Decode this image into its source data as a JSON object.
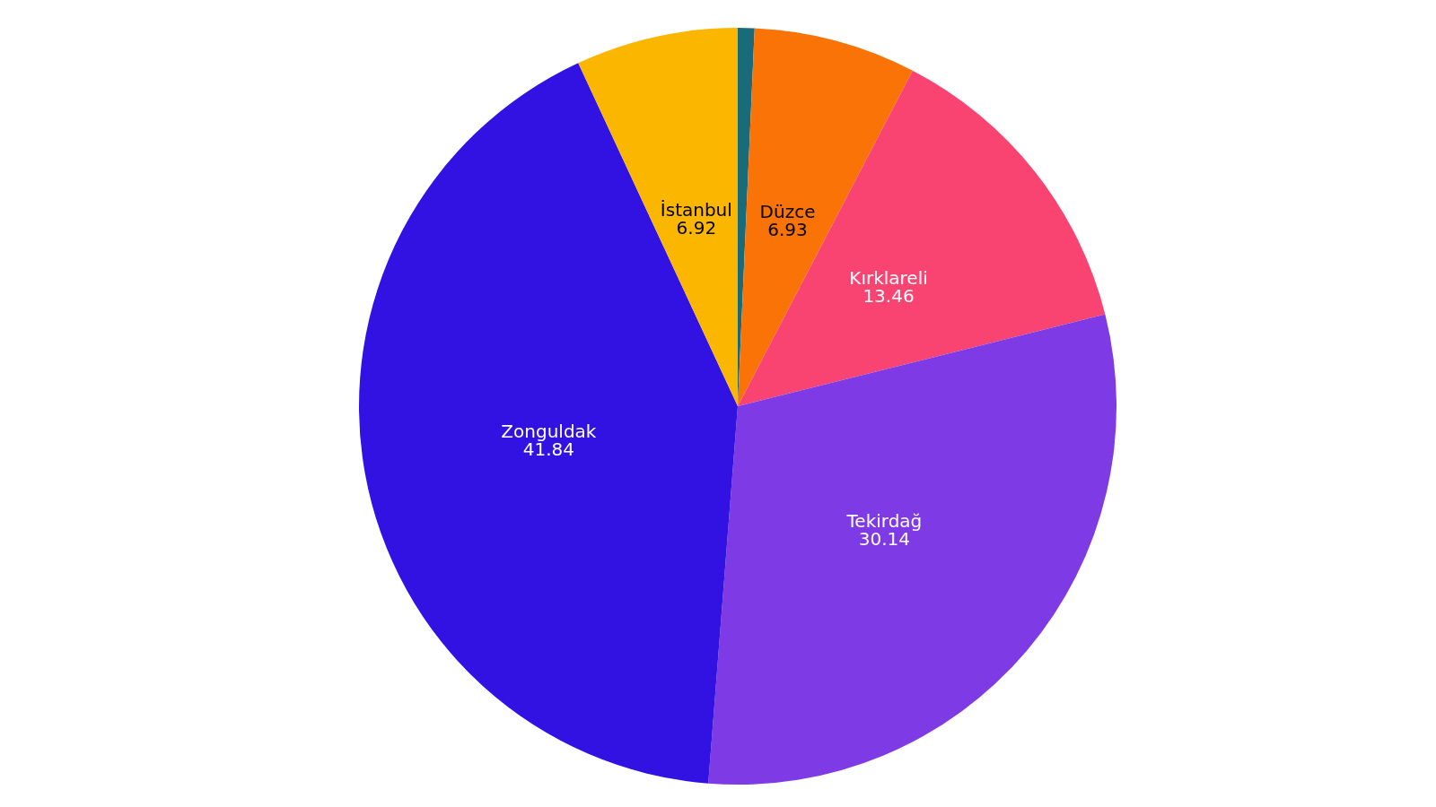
{
  "chart_data": {
    "type": "pie",
    "categories": [
      null,
      "Düzce",
      "Kırklareli",
      "Tekirdağ",
      "Zonguldak",
      "İstanbul"
    ],
    "values": [
      0.71,
      6.93,
      13.46,
      30.14,
      41.84,
      6.92
    ],
    "value_labels": [
      null,
      "6.93",
      "13.46",
      "30.14",
      "41.84",
      "6.92"
    ],
    "colors": [
      "#1a6b7a",
      "#f97306",
      "#f94472",
      "#7e3ae4",
      "#3112e3",
      "#fbb700"
    ],
    "legend": false
  }
}
